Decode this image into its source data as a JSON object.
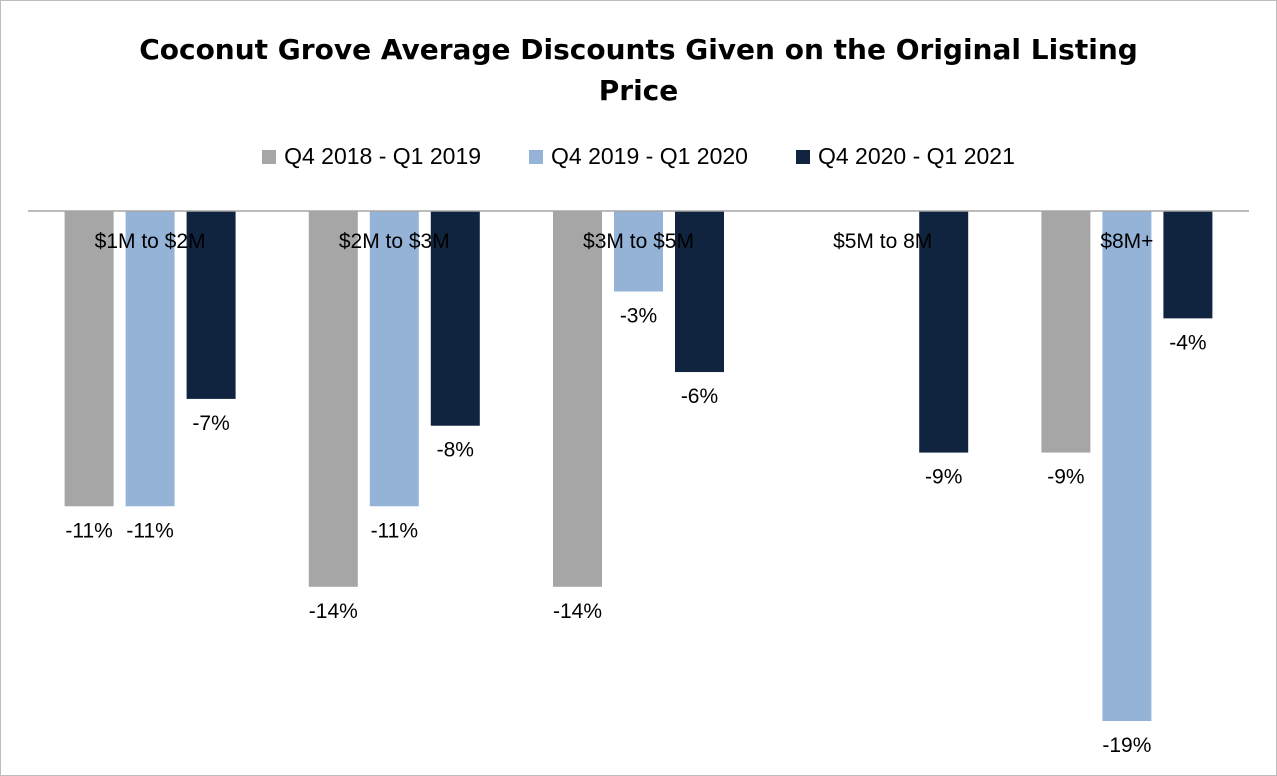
{
  "chart_data": {
    "type": "bar",
    "title": "Coconut Grove Average Discounts Given on the Original Listing Price",
    "title_lines": [
      "Coconut Grove Average Discounts Given on the Original Listing",
      "Price"
    ],
    "xlabel": "",
    "ylabel": "",
    "ylim": [
      -19.5,
      0
    ],
    "grid": false,
    "legend_position": "top",
    "categories": [
      "$1M to $2M",
      "$2M to $3M",
      "$3M to $5M",
      "$5M to 8M",
      "$8M+"
    ],
    "series": [
      {
        "name": "Q4 2018 - Q1 2019",
        "color": "#a6a6a6",
        "values": [
          -11,
          -14,
          -14,
          null,
          -9
        ],
        "labels": [
          "-11%",
          "-14%",
          "-14%",
          null,
          "-9%"
        ]
      },
      {
        "name": "Q4 2019 - Q1 2020",
        "color": "#95b3d7",
        "values": [
          -11,
          -11,
          -3,
          null,
          -19
        ],
        "labels": [
          "-11%",
          "-11%",
          "-3%",
          null,
          "-19%"
        ]
      },
      {
        "name": "Q4 2020 - Q1 2021",
        "color": "#10243f",
        "values": [
          -7,
          -8,
          -6,
          -9,
          -4
        ],
        "labels": [
          "-7%",
          "-8%",
          "-6%",
          "-9%",
          "-4%"
        ]
      }
    ]
  }
}
